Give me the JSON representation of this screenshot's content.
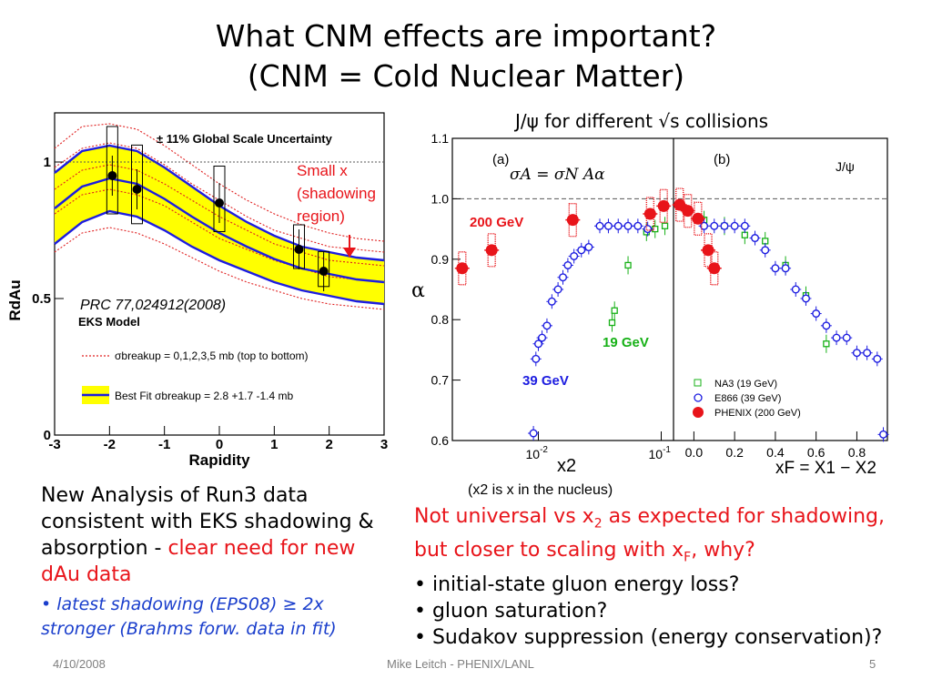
{
  "slide": {
    "title_line1": "What CNM effects are important?",
    "title_line2": "(CNM = Cold Nuclear Matter)",
    "left_text_a": "New Analysis of Run3 data consistent with EKS shadowing & absorption - ",
    "left_text_b": "clear need for new dAu data",
    "left_bullet": "• latest shadowing (EPS08) ≥ 2x stronger (Brahms forw. data in fit)",
    "right_red_a": "Not universal vs x",
    "right_red_b": "2",
    "right_red_c": " as expected for shadowing,",
    "right_red_d": "but closer to scaling with x",
    "right_red_e": "F",
    "right_red_f": ", why?",
    "bullet1": "• initial-state gluon energy loss?",
    "bullet2": "• gluon saturation?",
    "bullet3": "• Sudakov suppression (energy conservation)?",
    "footer_date": "4/10/2008",
    "footer_center": "Mike Leitch - PHENIX/LANL",
    "footer_page": "5"
  },
  "chart_data": [
    {
      "type": "line",
      "ylabel": "RdAu",
      "xlabel": "Rapidity",
      "xlim": [
        -3,
        3
      ],
      "ylim": [
        0,
        1.18
      ],
      "x_ticks": [
        "-3",
        "-2",
        "-1",
        "0",
        "1",
        "2",
        "3"
      ],
      "y_ticks": [
        "0",
        "0.5",
        "1"
      ],
      "annotation_top": "± 11% Global Scale Uncertainty",
      "annotation_small_x": "Small x (shadowing region)",
      "annotation_ref": "PRC 77,024912(2008)",
      "model_label": "EKS Model",
      "legend_breakup": "σbreakup = 0,1,2,3,5 mb (top to bottom)",
      "legend_bestfit": "Best Fit σbreakup = 2.8 +1.7 -1.4 mb",
      "data_points": [
        {
          "x": -1.95,
          "y": 0.95,
          "syst": 0.2
        },
        {
          "x": -1.5,
          "y": 0.9,
          "syst": 0.18
        },
        {
          "x": 0.0,
          "y": 0.85,
          "syst": 0.15
        },
        {
          "x": 1.45,
          "y": 0.68,
          "syst": 0.1
        },
        {
          "x": 1.9,
          "y": 0.6,
          "syst": 0.08
        }
      ],
      "best_fit": {
        "x": [
          -3,
          -2.5,
          -2,
          -1.5,
          -1,
          -0.5,
          0,
          0.5,
          1,
          1.5,
          2,
          2.5,
          3
        ],
        "upper": [
          0.96,
          1.04,
          1.06,
          1.04,
          0.98,
          0.91,
          0.84,
          0.78,
          0.73,
          0.69,
          0.67,
          0.65,
          0.64
        ],
        "lower": [
          0.7,
          0.78,
          0.82,
          0.8,
          0.75,
          0.69,
          0.64,
          0.6,
          0.56,
          0.53,
          0.51,
          0.49,
          0.48
        ]
      },
      "breakup_curves": [
        {
          "label": "0 mb",
          "values": [
            1.05,
            1.13,
            1.14,
            1.12,
            1.06,
            0.99,
            0.92,
            0.86,
            0.81,
            0.77,
            0.74,
            0.72,
            0.71
          ]
        },
        {
          "label": "1 mb",
          "values": [
            0.98,
            1.05,
            1.07,
            1.05,
            0.99,
            0.92,
            0.86,
            0.8,
            0.75,
            0.72,
            0.69,
            0.68,
            0.67
          ]
        },
        {
          "label": "2 mb",
          "values": [
            0.9,
            0.97,
            0.99,
            0.97,
            0.92,
            0.86,
            0.8,
            0.75,
            0.7,
            0.67,
            0.64,
            0.63,
            0.62
          ]
        },
        {
          "label": "3 mb",
          "values": [
            0.81,
            0.88,
            0.9,
            0.88,
            0.84,
            0.78,
            0.72,
            0.68,
            0.64,
            0.61,
            0.58,
            0.57,
            0.56
          ]
        },
        {
          "label": "5 mb",
          "values": [
            0.67,
            0.74,
            0.76,
            0.74,
            0.7,
            0.65,
            0.6,
            0.56,
            0.53,
            0.5,
            0.48,
            0.47,
            0.46
          ]
        }
      ],
      "colors": {
        "band": "#ffff00",
        "curve": "#1c1ce0",
        "breakup": "#e02020"
      }
    },
    {
      "type": "scatter",
      "title": "J/ψ for different √s collisions",
      "ylabel": "α",
      "ylim": [
        0.6,
        1.1
      ],
      "y_ticks": [
        "0.6",
        "0.7",
        "0.8",
        "0.9",
        "1.0",
        "1.1"
      ],
      "panel_a": {
        "label": "(a)",
        "formula": "σA = σN Aα",
        "xlabel": "x2",
        "x_ticks": [
          "10-2",
          "10-1"
        ],
        "xlim_log10": [
          -2.7,
          -0.9
        ],
        "label_200": "200 GeV",
        "label_19": "19 GeV",
        "label_39": "39 GeV",
        "phenix": [
          {
            "x": -2.62,
            "y": 0.885
          },
          {
            "x": -2.38,
            "y": 0.915
          },
          {
            "x": -1.72,
            "y": 0.965
          },
          {
            "x": -1.09,
            "y": 0.975
          },
          {
            "x": -0.98,
            "y": 0.988
          }
        ],
        "e866": [
          {
            "x": -2.04,
            "y": 0.612
          },
          {
            "x": -2.02,
            "y": 0.735
          },
          {
            "x": -2.0,
            "y": 0.76
          },
          {
            "x": -1.97,
            "y": 0.77
          },
          {
            "x": -1.93,
            "y": 0.79
          },
          {
            "x": -1.89,
            "y": 0.83
          },
          {
            "x": -1.84,
            "y": 0.85
          },
          {
            "x": -1.8,
            "y": 0.87
          },
          {
            "x": -1.76,
            "y": 0.89
          },
          {
            "x": -1.71,
            "y": 0.905
          },
          {
            "x": -1.65,
            "y": 0.915
          },
          {
            "x": -1.59,
            "y": 0.92
          },
          {
            "x": -1.5,
            "y": 0.955
          },
          {
            "x": -1.43,
            "y": 0.955
          },
          {
            "x": -1.35,
            "y": 0.955
          },
          {
            "x": -1.27,
            "y": 0.955
          },
          {
            "x": -1.19,
            "y": 0.955
          },
          {
            "x": -1.11,
            "y": 0.95
          }
        ],
        "na3": [
          {
            "x": -1.38,
            "y": 0.815
          },
          {
            "x": -1.4,
            "y": 0.795
          },
          {
            "x": -1.27,
            "y": 0.89
          },
          {
            "x": -1.12,
            "y": 0.945
          },
          {
            "x": -1.05,
            "y": 0.95
          },
          {
            "x": -0.97,
            "y": 0.955
          }
        ]
      },
      "panel_b": {
        "label": "(b)",
        "jpsi_label": "J/ψ",
        "xlabel": "xF = X1 − X2",
        "x_ticks": [
          "0.0",
          "0.2",
          "0.4",
          "0.6",
          "0.8"
        ],
        "xlim": [
          -0.1,
          0.95
        ],
        "legend": [
          "NA3 (19 GeV)",
          "E866 (39 GeV)",
          "PHENIX (200 GeV)"
        ],
        "phenix": [
          {
            "x": -0.07,
            "y": 0.99
          },
          {
            "x": -0.03,
            "y": 0.98
          },
          {
            "x": 0.02,
            "y": 0.967
          },
          {
            "x": 0.07,
            "y": 0.915
          },
          {
            "x": 0.1,
            "y": 0.885
          }
        ],
        "e866": [
          {
            "x": 0.05,
            "y": 0.955
          },
          {
            "x": 0.1,
            "y": 0.955
          },
          {
            "x": 0.15,
            "y": 0.955
          },
          {
            "x": 0.2,
            "y": 0.955
          },
          {
            "x": 0.25,
            "y": 0.955
          },
          {
            "x": 0.3,
            "y": 0.935
          },
          {
            "x": 0.35,
            "y": 0.915
          },
          {
            "x": 0.4,
            "y": 0.885
          },
          {
            "x": 0.45,
            "y": 0.885
          },
          {
            "x": 0.5,
            "y": 0.85
          },
          {
            "x": 0.55,
            "y": 0.835
          },
          {
            "x": 0.6,
            "y": 0.81
          },
          {
            "x": 0.65,
            "y": 0.79
          },
          {
            "x": 0.7,
            "y": 0.77
          },
          {
            "x": 0.75,
            "y": 0.77
          },
          {
            "x": 0.8,
            "y": 0.745
          },
          {
            "x": 0.85,
            "y": 0.745
          },
          {
            "x": 0.9,
            "y": 0.735
          },
          {
            "x": 0.93,
            "y": 0.61
          }
        ],
        "na3": [
          {
            "x": 0.05,
            "y": 0.965
          },
          {
            "x": 0.15,
            "y": 0.955
          },
          {
            "x": 0.25,
            "y": 0.94
          },
          {
            "x": 0.35,
            "y": 0.93
          },
          {
            "x": 0.45,
            "y": 0.89
          },
          {
            "x": 0.55,
            "y": 0.84
          },
          {
            "x": 0.65,
            "y": 0.76
          }
        ]
      },
      "note": "(x2 is x in the nucleus)",
      "colors": {
        "phenix": "#e8141a",
        "e866": "#1c1ce0",
        "na3": "#17b117"
      }
    }
  ]
}
